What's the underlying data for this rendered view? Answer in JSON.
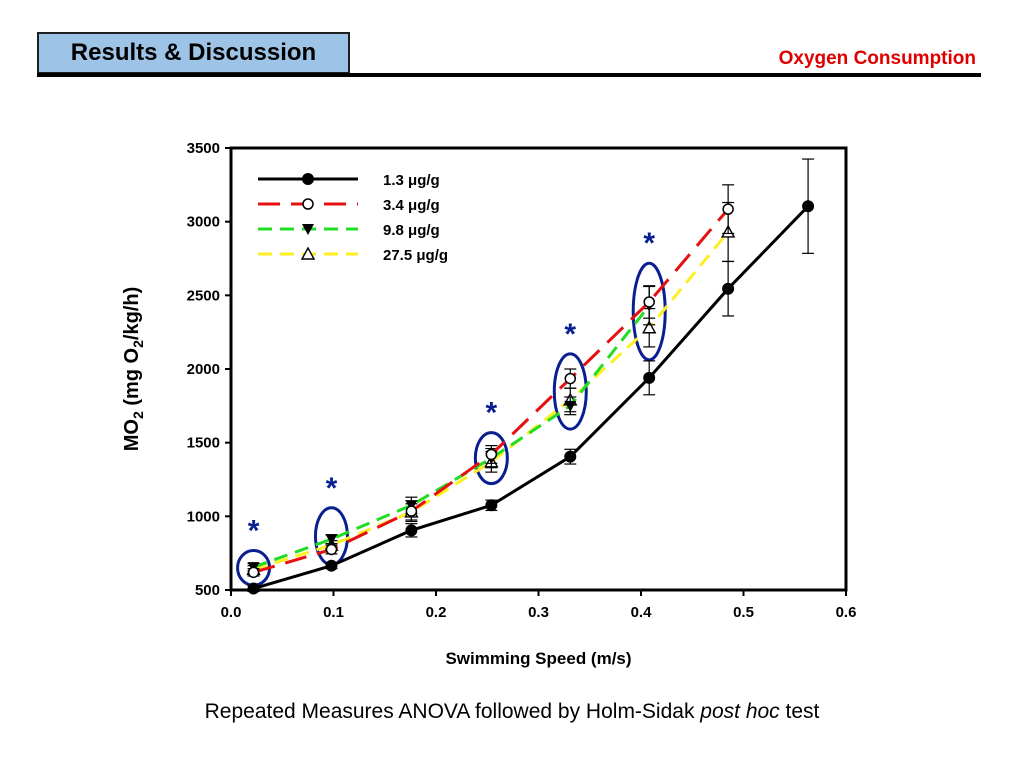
{
  "header": {
    "title": "Results & Discussion",
    "section": "Oxygen Consumption"
  },
  "footnote": {
    "before": "Repeated Measures ANOVA followed by Holm-Sidak ",
    "italic": "post hoc",
    "after": " test"
  },
  "colors": {
    "title_bg": "#9dc3e6",
    "section_text": "#e00000",
    "ellipse": "#0a1f8f",
    "star": "#0a1f8f"
  },
  "chart_data": {
    "type": "line",
    "xlabel": "Swimming Speed (m/s)",
    "ylabel_parts": [
      "MO",
      "2",
      " (mg O",
      "2",
      "/kg/h)"
    ],
    "xlim": [
      0.0,
      0.6
    ],
    "ylim": [
      500,
      3500
    ],
    "xticks": [
      "0.0",
      "0.1",
      "0.2",
      "0.3",
      "0.4",
      "0.5",
      "0.6"
    ],
    "yticks": [
      "500",
      "1000",
      "1500",
      "2000",
      "2500",
      "3000",
      "3500"
    ],
    "grid": false,
    "legend_position": "top-left",
    "series": [
      {
        "name": "1.3 μg/g",
        "color": "#000000",
        "dash": "solid",
        "marker": "filled-circle",
        "x": [
          0.022,
          0.098,
          0.176,
          0.254,
          0.331,
          0.408,
          0.485,
          0.563
        ],
        "y": [
          510,
          665,
          905,
          1075,
          1405,
          1940,
          2545,
          3105
        ],
        "err": [
          20,
          20,
          45,
          35,
          50,
          115,
          185,
          320
        ]
      },
      {
        "name": "3.4 μg/g",
        "color": "#e61010",
        "dash": "long-dash",
        "marker": "open-circle",
        "x": [
          0.022,
          0.098,
          0.176,
          0.254,
          0.331,
          0.408,
          0.485
        ],
        "y": [
          620,
          775,
          1035,
          1420,
          1935,
          2455,
          3085
        ],
        "err": [
          25,
          30,
          70,
          60,
          65,
          110,
          165
        ]
      },
      {
        "name": "9.8 μg/g",
        "color": "#22dd22",
        "dash": "dash",
        "marker": "filled-triangle-down",
        "x": [
          0.022,
          0.098,
          0.176,
          0.254,
          0.331,
          0.408
        ],
        "y": [
          655,
          845,
          1075,
          1395,
          1750,
          2430
        ],
        "err": [
          25,
          30,
          55,
          65,
          60,
          130
        ]
      },
      {
        "name": "27.5 μg/g",
        "color": "#ffee22",
        "dash": "dash",
        "marker": "open-triangle-up",
        "x": [
          0.022,
          0.098,
          0.176,
          0.254,
          0.331,
          0.408,
          0.485
        ],
        "y": [
          640,
          805,
          1030,
          1370,
          1790,
          2280,
          2930
        ],
        "err": [
          25,
          30,
          55,
          70,
          80,
          130,
          200
        ]
      }
    ],
    "significance": [
      {
        "x": 0.022,
        "y_low": 600,
        "y_high": 700,
        "symbol": "*"
      },
      {
        "x": 0.098,
        "y_low": 740,
        "y_high": 990,
        "symbol": "*"
      },
      {
        "x": 0.254,
        "y_low": 1290,
        "y_high": 1500,
        "symbol": "*"
      },
      {
        "x": 0.331,
        "y_low": 1660,
        "y_high": 2035,
        "symbol": "*"
      },
      {
        "x": 0.408,
        "y_low": 2130,
        "y_high": 2650,
        "symbol": "*"
      }
    ]
  }
}
